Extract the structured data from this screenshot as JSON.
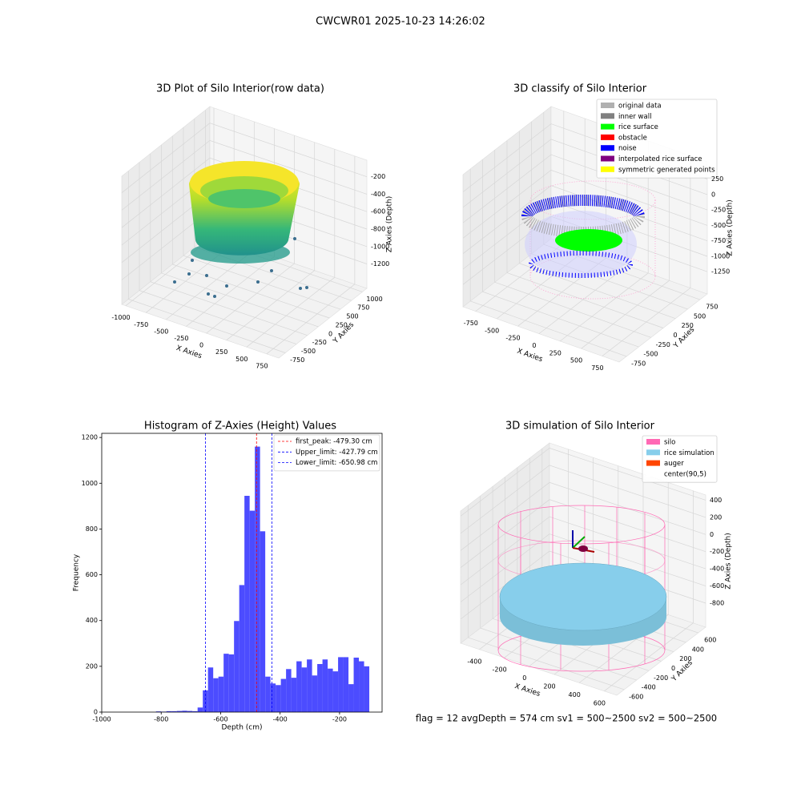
{
  "title": "CWCWR01 2025-10-23 14:26:02",
  "footer": "flag = 12  avgDepth = 574 cm  sv1 = 500~2500  sv2 = 500~2500",
  "chart_data": [
    {
      "type": "scatter3d",
      "title": "3D Plot of Silo Interior(row data)",
      "xlabel": "X Axies",
      "ylabel": "Y Axies",
      "zlabel": "Z Axies (Depth)",
      "xlim": [
        -1050,
        900
      ],
      "ylim": [
        -900,
        1100
      ],
      "zlim": [
        -1480,
        -10
      ],
      "xticks": [
        -1000,
        -750,
        -500,
        -250,
        0,
        250,
        500,
        750
      ],
      "yticks": [
        -750,
        -500,
        -250,
        0,
        250,
        500,
        750,
        1000
      ],
      "zticks": [
        -200,
        -400,
        -600,
        -800,
        -1000,
        -1200
      ]
    },
    {
      "type": "scatter3d",
      "title": "3D classify of Silo Interior",
      "xlabel": "X Axies",
      "ylabel": "Y Axies",
      "zlabel": "Z Axies (Depth)",
      "xlim": [
        -900,
        950
      ],
      "ylim": [
        -900,
        900
      ],
      "zlim": [
        -1610,
        530
      ],
      "xticks": [
        -750,
        -500,
        -250,
        0,
        250,
        500,
        750
      ],
      "yticks": [
        -750,
        -500,
        -250,
        0,
        250,
        500,
        750
      ],
      "zticks": [
        250,
        0,
        -250,
        -500,
        -750,
        -1000,
        -1250
      ],
      "legend_loc": "upper right",
      "legend": [
        {
          "name": "original data",
          "color": "#b0b0b0"
        },
        {
          "name": "inner wall",
          "color": "#808080"
        },
        {
          "name": "rice surface",
          "color": "#00ff00"
        },
        {
          "name": "obstacle",
          "color": "#ff0000"
        },
        {
          "name": "noise",
          "color": "#0000ff"
        },
        {
          "name": "interpolated rice surface",
          "color": "#800080"
        },
        {
          "name": "symmetric generated points",
          "color": "#ffff00"
        }
      ]
    },
    {
      "type": "histogram",
      "title": "Histogram of Z-Axies (Height) Values",
      "xlabel": "Depth (cm)",
      "ylabel": "Frequency",
      "color": "#4c4cff",
      "xlim": [
        -1000,
        -57
      ],
      "ylim": [
        0,
        1218
      ],
      "xticks": [
        -1000,
        -800,
        -600,
        -400,
        -200
      ],
      "yticks": [
        0,
        200,
        400,
        600,
        800,
        1000,
        1200
      ],
      "bins": [
        -940,
        -922.5,
        -905,
        -887.5,
        -870,
        -852.5,
        -835,
        -817.5,
        -800,
        -782.5,
        -765,
        -747.5,
        -730,
        -712.5,
        -695,
        -677.5,
        -660,
        -642.5,
        -625,
        -607.5,
        -590,
        -572.5,
        -555,
        -537.5,
        -520,
        -502.5,
        -485,
        -467.5,
        -450,
        -432.5,
        -415,
        -397.5,
        -380,
        -362.5,
        -345,
        -327.5,
        -310,
        -292.5,
        -275,
        -257.5,
        -240,
        -222.5,
        -205,
        -187.5,
        -170,
        -152.5,
        -135,
        -117.5,
        -100
      ],
      "values": [
        0,
        0,
        0,
        0,
        0,
        0,
        0,
        3,
        2,
        4,
        4,
        5,
        6,
        5,
        4,
        20,
        95,
        195,
        148,
        155,
        255,
        252,
        398,
        555,
        945,
        880,
        1160,
        790,
        155,
        125,
        118,
        145,
        188,
        150,
        222,
        195,
        230,
        160,
        210,
        230,
        190,
        178,
        240,
        240,
        122,
        238,
        222,
        200
      ],
      "legend_loc": "upper right",
      "vlines": [
        {
          "label": "first_peak: -479.30 cm",
          "value": -479.3,
          "color": "#ff0000"
        },
        {
          "label": "Upper_limit: -427.79 cm",
          "value": -427.79,
          "color": "#0000ff"
        },
        {
          "label": "Lower_limit: -650.98 cm",
          "value": -650.98,
          "color": "#0000ff"
        }
      ]
    },
    {
      "type": "wireframe3d",
      "title": "3D simulation of Silo Interior",
      "xlabel": "X Axies",
      "ylabel": "Y Axies",
      "zlabel": "Z Axies (Depth)",
      "xlim": [
        -550,
        700
      ],
      "ylim": [
        -720,
        720
      ],
      "zlim": [
        -1080,
        460
      ],
      "xticks": [
        -400,
        -200,
        0,
        200,
        400,
        600
      ],
      "yticks": [
        -600,
        -400,
        -200,
        0,
        200,
        400,
        600
      ],
      "zticks": [
        400,
        200,
        0,
        -200,
        -400,
        -600,
        -800
      ],
      "legend_loc": "upper right",
      "legend": [
        {
          "name": "silo",
          "color": "#ff69b4"
        },
        {
          "name": "rice simulation",
          "color": "#87ceeb"
        },
        {
          "name": "auger",
          "color": "#ff4500"
        },
        {
          "name": "center(90,5)",
          "color": "#ffffff"
        }
      ]
    }
  ]
}
